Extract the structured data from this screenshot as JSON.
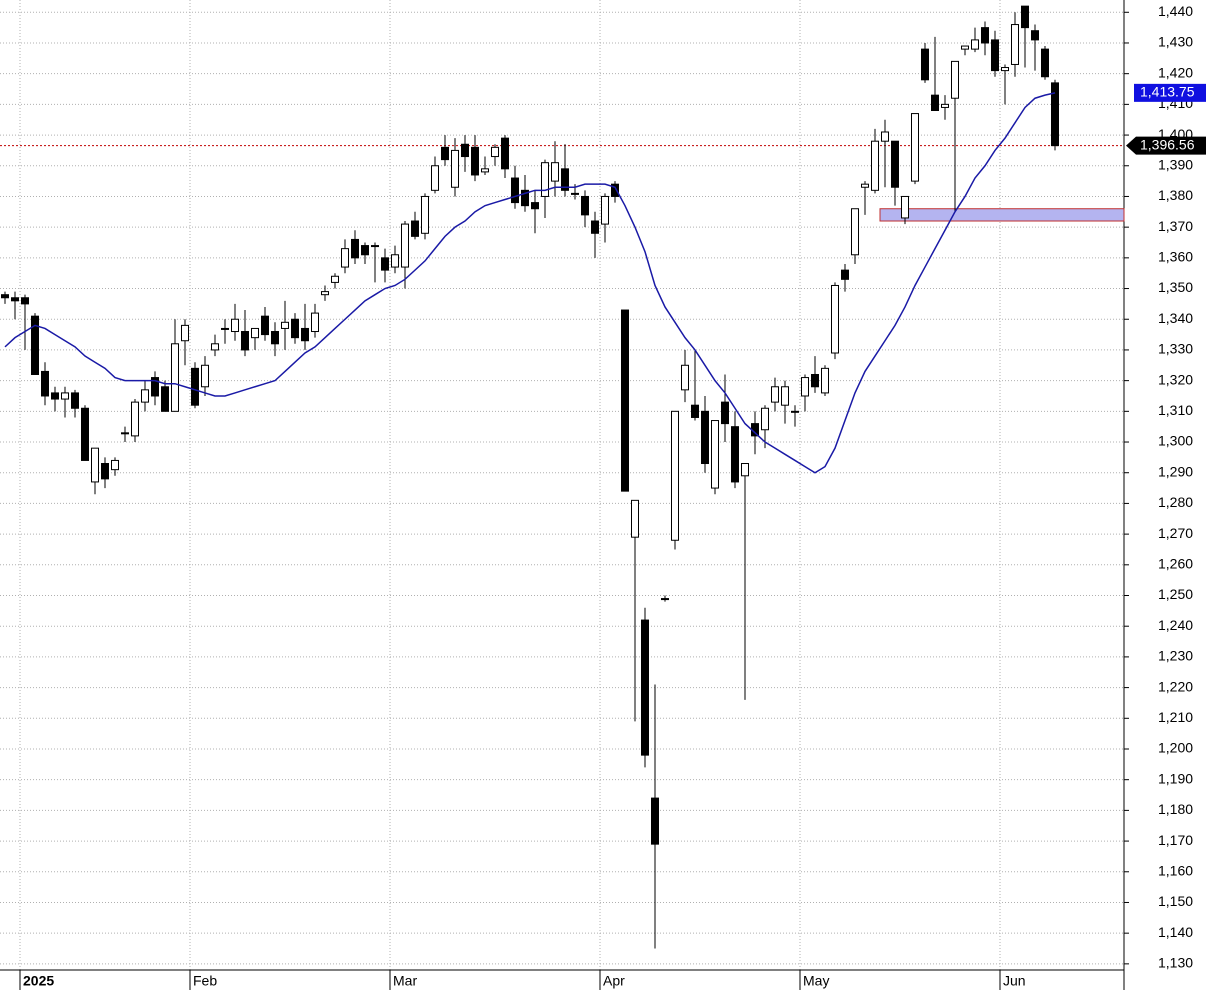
{
  "chart_data": {
    "type": "candlestick",
    "categories": [
      null,
      null,
      "2025",
      null,
      null,
      null,
      null,
      null,
      null,
      null,
      null,
      null,
      null,
      null,
      null,
      null,
      null,
      null,
      null,
      "Feb",
      null,
      null,
      null,
      null,
      null,
      null,
      null,
      null,
      null,
      null,
      null,
      null,
      null,
      null,
      null,
      null,
      null,
      null,
      null,
      "Mar",
      null,
      null,
      null,
      null,
      null,
      null,
      null,
      null,
      null,
      null,
      null,
      null,
      null,
      null,
      null,
      null,
      null,
      null,
      null,
      null,
      "Apr",
      null,
      null,
      null,
      null,
      null,
      null,
      null,
      null,
      null,
      null,
      null,
      null,
      null,
      null,
      null,
      null,
      null,
      null,
      null,
      "May",
      null,
      null,
      null,
      null,
      null,
      null,
      null,
      null,
      null,
      null,
      null,
      null,
      null,
      null,
      null,
      null,
      null,
      null,
      null,
      "Jun",
      null,
      null,
      null,
      null,
      null
    ],
    "bold_category": "2025",
    "open": [
      1348,
      1347,
      1347,
      1341,
      1323,
      1316,
      1314,
      1316,
      1311,
      1287,
      1293,
      1291,
      1303,
      1302,
      1313,
      1321,
      1318,
      1310,
      1333,
      1324,
      1318,
      1330,
      1337,
      1336,
      1336,
      1334,
      1341,
      1336,
      1337,
      1340,
      1337,
      1336,
      1348,
      1352,
      1357,
      1366,
      1364,
      1364,
      1360,
      1357,
      1357,
      1372,
      1368,
      1382,
      1396,
      1383,
      1397,
      1396,
      1388,
      1393,
      1399,
      1386,
      1382,
      1378,
      1380,
      1385,
      1389,
      1381,
      1380,
      1372,
      1371,
      1384,
      1343,
      1269,
      1242,
      1184,
      1249,
      1268,
      1317,
      1312,
      1310,
      1285,
      1313,
      1305,
      1289,
      1306,
      1304,
      1313,
      1312,
      1310,
      1315,
      1322,
      1316,
      1329,
      1356,
      1361,
      1383,
      1382,
      1398,
      1398,
      1373,
      1385,
      1428,
      1413,
      1409,
      1412,
      1428,
      1428,
      1435,
      1431,
      1421,
      1423,
      1442,
      1434,
      1428,
      1417
    ],
    "high": [
      1349,
      1349,
      1348,
      1342,
      1326,
      1318,
      1318,
      1317,
      1312,
      1298,
      1295,
      1295,
      1305,
      1314,
      1320,
      1323,
      1320,
      1340,
      1340,
      1326,
      1328,
      1335,
      1340,
      1345,
      1343,
      1337,
      1344,
      1339,
      1346,
      1342,
      1345,
      1345,
      1351,
      1355,
      1366,
      1369,
      1365,
      1365,
      1363,
      1364,
      1372,
      1375,
      1381,
      1393,
      1400,
      1399,
      1400,
      1400,
      1393,
      1397,
      1400,
      1390,
      1387,
      1382,
      1392,
      1398,
      1397,
      1384,
      1382,
      1375,
      1381,
      1385,
      1343,
      1281,
      1246,
      1221,
      1250,
      1310,
      1330,
      1330,
      1315,
      1307,
      1322,
      1310,
      1293,
      1310,
      1312,
      1321,
      1320,
      1312,
      1322,
      1328,
      1325,
      1352,
      1358,
      1376,
      1385,
      1402,
      1405,
      1398,
      1380,
      1407,
      1430,
      1432,
      1413,
      1424,
      1429,
      1435,
      1437,
      1434,
      1423,
      1440,
      1442,
      1436,
      1429,
      1418
    ],
    "low": [
      1345,
      1340,
      1330,
      1322,
      1312,
      1310,
      1308,
      1308,
      1294,
      1283,
      1285,
      1289,
      1300,
      1300,
      1310,
      1312,
      1310,
      1310,
      1325,
      1311,
      1315,
      1328,
      1332,
      1333,
      1328,
      1330,
      1333,
      1328,
      1330,
      1332,
      1330,
      1334,
      1346,
      1350,
      1355,
      1358,
      1358,
      1352,
      1352,
      1355,
      1350,
      1366,
      1366,
      1381,
      1390,
      1380,
      1388,
      1385,
      1387,
      1390,
      1386,
      1376,
      1375,
      1368,
      1373,
      1380,
      1380,
      1379,
      1370,
      1360,
      1365,
      1378,
      1284,
      1209,
      1194,
      1135,
      1248,
      1265,
      1313,
      1307,
      1290,
      1283,
      1300,
      1285,
      1216,
      1296,
      1298,
      1310,
      1306,
      1305,
      1310,
      1316,
      1315,
      1327,
      1349,
      1358,
      1374,
      1381,
      1383,
      1377,
      1371,
      1384,
      1417,
      1408,
      1405,
      1375,
      1426,
      1427,
      1426,
      1419,
      1410,
      1419,
      1422,
      1421,
      1418,
      1395
    ],
    "close": [
      1347,
      1346,
      1345,
      1322,
      1315,
      1314,
      1316,
      1311,
      1294,
      1298,
      1288,
      1294,
      1303,
      1313,
      1317,
      1315,
      1310,
      1332,
      1338,
      1312,
      1325,
      1332,
      1337,
      1340,
      1330,
      1337,
      1335,
      1332,
      1339,
      1334,
      1333,
      1342,
      1349,
      1354,
      1363,
      1360,
      1361,
      1364,
      1356,
      1361,
      1371,
      1367,
      1380,
      1390,
      1392,
      1395,
      1393,
      1387,
      1389,
      1396,
      1389,
      1378,
      1377,
      1376,
      1391,
      1391,
      1382,
      1381,
      1374,
      1368,
      1380,
      1380,
      1284,
      1281,
      1198,
      1169,
      1249,
      1310,
      1325,
      1308,
      1293,
      1307,
      1306,
      1287,
      1293,
      1302,
      1311,
      1318,
      1318,
      1310,
      1321,
      1318,
      1324,
      1351,
      1353,
      1376,
      1384,
      1398,
      1401,
      1383,
      1380,
      1407,
      1418,
      1408,
      1410,
      1424,
      1429,
      1431,
      1430,
      1421,
      1422,
      1436,
      1435,
      1431,
      1419,
      1396.56
    ],
    "ma": {
      "color": "#1a1aa6",
      "values": [
        1331,
        1334,
        1336,
        1338,
        1337,
        1335,
        1333,
        1331,
        1328,
        1326,
        1324,
        1321,
        1320,
        1320,
        1320,
        1320,
        1319,
        1319,
        1318,
        1317,
        1316,
        1315,
        1315,
        1316,
        1317,
        1318,
        1319,
        1320,
        1323,
        1326,
        1329,
        1331,
        1334,
        1337,
        1340,
        1343,
        1346,
        1348,
        1350,
        1351,
        1353,
        1356,
        1359,
        1363,
        1367,
        1370,
        1372,
        1375,
        1377,
        1378,
        1379,
        1380,
        1381,
        1382,
        1382,
        1383,
        1383,
        1383,
        1384,
        1384,
        1384,
        1383,
        1377,
        1370,
        1362,
        1351,
        1344,
        1339,
        1334,
        1330,
        1325,
        1320,
        1316,
        1311,
        1306,
        1303,
        1300,
        1298,
        1296,
        1294,
        1292,
        1290,
        1292,
        1298,
        1307,
        1316,
        1323,
        1328,
        1333,
        1338,
        1344,
        1351,
        1357,
        1363,
        1369,
        1375,
        1380,
        1386,
        1390,
        1395,
        1399,
        1404,
        1409,
        1412,
        1413,
        1413.75
      ]
    },
    "ma_label": "1,413.75",
    "last_label": "1,396.56",
    "zone": {
      "from_category": 88,
      "low": 1372,
      "high": 1376,
      "color": "#b4b4f0"
    },
    "ylim": [
      1128,
      1444
    ],
    "yticks": [
      {
        "value": 1130,
        "label": "1,130"
      },
      {
        "value": 1140,
        "label": "1,140"
      },
      {
        "value": 1150,
        "label": "1,150"
      },
      {
        "value": 1160,
        "label": "1,160"
      },
      {
        "value": 1170,
        "label": "1,170"
      },
      {
        "value": 1180,
        "label": "1,180"
      },
      {
        "value": 1190,
        "label": "1,190"
      },
      {
        "value": 1200,
        "label": "1,200"
      },
      {
        "value": 1210,
        "label": "1,210"
      },
      {
        "value": 1220,
        "label": "1,220"
      },
      {
        "value": 1230,
        "label": "1,230"
      },
      {
        "value": 1240,
        "label": "1,240"
      },
      {
        "value": 1250,
        "label": "1,250"
      },
      {
        "value": 1260,
        "label": "1,260"
      },
      {
        "value": 1270,
        "label": "1,270"
      },
      {
        "value": 1280,
        "label": "1,280"
      },
      {
        "value": 1290,
        "label": "1,290"
      },
      {
        "value": 1300,
        "label": "1,300"
      },
      {
        "value": 1310,
        "label": "1,310"
      },
      {
        "value": 1320,
        "label": "1,320"
      },
      {
        "value": 1330,
        "label": "1,330"
      },
      {
        "value": 1340,
        "label": "1,340"
      },
      {
        "value": 1350,
        "label": "1,350"
      },
      {
        "value": 1360,
        "label": "1,360"
      },
      {
        "value": 1370,
        "label": "1,370"
      },
      {
        "value": 1380,
        "label": "1,380"
      },
      {
        "value": 1390,
        "label": "1,390"
      },
      {
        "value": 1400,
        "label": "1,400"
      },
      {
        "value": 1410,
        "label": "1,410"
      },
      {
        "value": 1420,
        "label": "1,420"
      },
      {
        "value": 1430,
        "label": "1,430"
      },
      {
        "value": 1440,
        "label": "1,440"
      }
    ],
    "grid": true
  }
}
